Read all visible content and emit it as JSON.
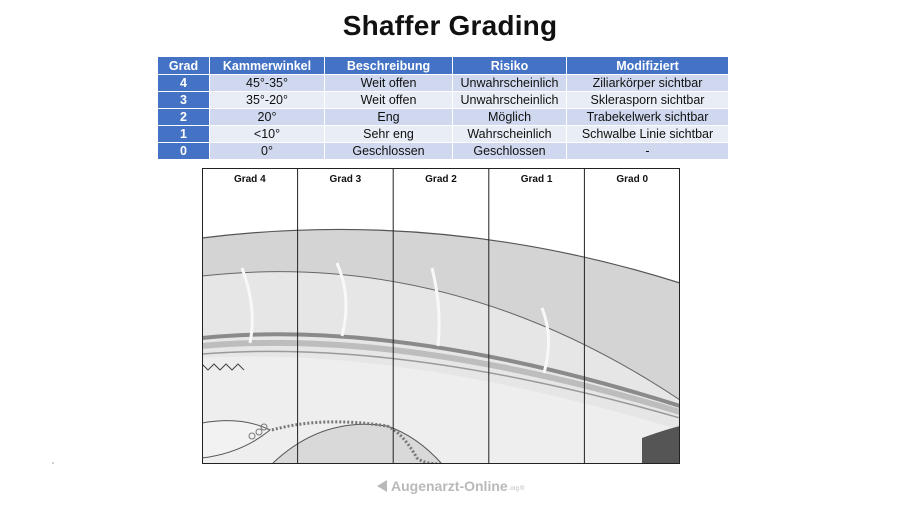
{
  "title": "Shaffer Grading",
  "table": {
    "headers": [
      "Grad",
      "Kammerwinkel",
      "Beschreibung",
      "Risiko",
      "Modifiziert"
    ],
    "rows": [
      [
        "4",
        "45°-35°",
        "Weit offen",
        "Unwahrscheinlich",
        "Ziliarkörper sichtbar"
      ],
      [
        "3",
        "35°-20°",
        "Weit offen",
        "Unwahrscheinlich",
        "Sklerasporn sichtbar"
      ],
      [
        "2",
        "20°",
        "Eng",
        "Möglich",
        "Trabekelwerk sichtbar"
      ],
      [
        "1",
        "<10°",
        "Sehr eng",
        "Wahrscheinlich",
        "Schwalbe Linie sichtbar"
      ],
      [
        "0",
        "0°",
        "Geschlossen",
        "Geschlossen",
        "-"
      ]
    ]
  },
  "figure": {
    "panels": [
      "Grad 4",
      "Grad 3",
      "Grad 2",
      "Grad 1",
      "Grad 0"
    ]
  },
  "footer": {
    "brand": "Augenarzt-Online",
    "suffix": ".org",
    "registered": "®"
  },
  "colors": {
    "header_blue": "#4472c4",
    "row_light": "#cfd8ee",
    "row_lighter": "#e9edf6"
  }
}
